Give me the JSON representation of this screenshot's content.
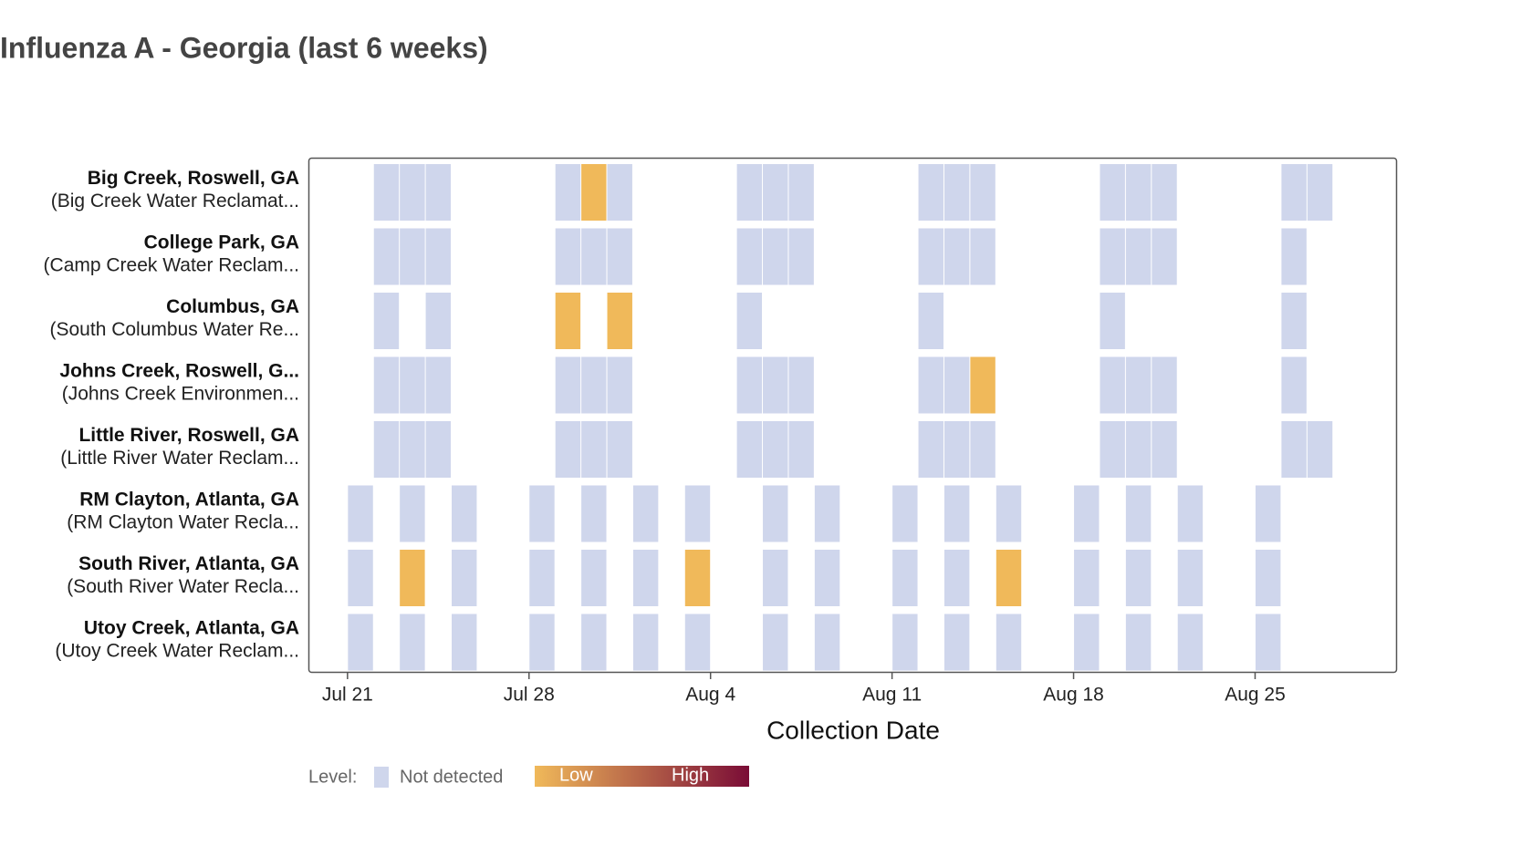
{
  "chart_data": {
    "type": "tile",
    "title": "Influenza A - Georgia (last 6 weeks)",
    "x_label": "Collection Date",
    "xlim": [
      "Jul 19",
      "Aug 31"
    ],
    "xticks": [
      "Jul 21",
      "Jul 28",
      "Aug 4",
      "Aug 11",
      "Aug 18",
      "Aug 25"
    ],
    "legend": {
      "title": "Level:",
      "not_detected": "Not detected",
      "low": "Low",
      "high": "High",
      "not_detected_color": "#cfd6ec",
      "low_color": "#f0b95a",
      "high_color": "#7a0c36"
    },
    "rows": [
      {
        "label": "Big Creek, Roswell, GA",
        "sublabel": "(Big Creek Water Reclamat...",
        "dates": [
          "Jul 22",
          "Jul 23",
          "Jul 24",
          "Jul 29",
          "Jul 30",
          "Jul 31",
          "Aug 5",
          "Aug 6",
          "Aug 7",
          "Aug 12",
          "Aug 13",
          "Aug 14",
          "Aug 19",
          "Aug 20",
          "Aug 21",
          "Aug 26",
          "Aug 27"
        ],
        "levels": [
          "Not detected",
          "Not detected",
          "Not detected",
          "Not detected",
          "Low",
          "Not detected",
          "Not detected",
          "Not detected",
          "Not detected",
          "Not detected",
          "Not detected",
          "Not detected",
          "Not detected",
          "Not detected",
          "Not detected",
          "Not detected",
          "Not detected"
        ]
      },
      {
        "label": "College Park, GA",
        "sublabel": "(Camp Creek Water Reclam...",
        "dates": [
          "Jul 22",
          "Jul 23",
          "Jul 24",
          "Jul 29",
          "Jul 30",
          "Jul 31",
          "Aug 5",
          "Aug 6",
          "Aug 7",
          "Aug 12",
          "Aug 13",
          "Aug 14",
          "Aug 19",
          "Aug 20",
          "Aug 21",
          "Aug 26"
        ],
        "levels": [
          "Not detected",
          "Not detected",
          "Not detected",
          "Not detected",
          "Not detected",
          "Not detected",
          "Not detected",
          "Not detected",
          "Not detected",
          "Not detected",
          "Not detected",
          "Not detected",
          "Not detected",
          "Not detected",
          "Not detected",
          "Not detected"
        ]
      },
      {
        "label": "Columbus, GA",
        "sublabel": "(South Columbus Water Re...",
        "dates": [
          "Jul 22",
          "Jul 24",
          "Jul 29",
          "Jul 31",
          "Aug 5",
          "Aug 12",
          "Aug 19",
          "Aug 26"
        ],
        "levels": [
          "Not detected",
          "Not detected",
          "Low",
          "Low",
          "Not detected",
          "Not detected",
          "Not detected",
          "Not detected"
        ]
      },
      {
        "label": "Johns Creek, Roswell, G...",
        "sublabel": "(Johns Creek Environmen...",
        "dates": [
          "Jul 22",
          "Jul 23",
          "Jul 24",
          "Jul 29",
          "Jul 30",
          "Jul 31",
          "Aug 5",
          "Aug 6",
          "Aug 7",
          "Aug 12",
          "Aug 13",
          "Aug 14",
          "Aug 19",
          "Aug 20",
          "Aug 21",
          "Aug 26"
        ],
        "levels": [
          "Not detected",
          "Not detected",
          "Not detected",
          "Not detected",
          "Not detected",
          "Not detected",
          "Not detected",
          "Not detected",
          "Not detected",
          "Not detected",
          "Not detected",
          "Low",
          "Not detected",
          "Not detected",
          "Not detected",
          "Not detected"
        ]
      },
      {
        "label": "Little River, Roswell, GA",
        "sublabel": "(Little River Water Reclam...",
        "dates": [
          "Jul 22",
          "Jul 23",
          "Jul 24",
          "Jul 29",
          "Jul 30",
          "Jul 31",
          "Aug 5",
          "Aug 6",
          "Aug 7",
          "Aug 12",
          "Aug 13",
          "Aug 14",
          "Aug 19",
          "Aug 20",
          "Aug 21",
          "Aug 26",
          "Aug 27"
        ],
        "levels": [
          "Not detected",
          "Not detected",
          "Not detected",
          "Not detected",
          "Not detected",
          "Not detected",
          "Not detected",
          "Not detected",
          "Not detected",
          "Not detected",
          "Not detected",
          "Not detected",
          "Not detected",
          "Not detected",
          "Not detected",
          "Not detected",
          "Not detected"
        ]
      },
      {
        "label": "RM Clayton, Atlanta, GA",
        "sublabel": "(RM Clayton Water Recla...",
        "dates": [
          "Jul 21",
          "Jul 23",
          "Jul 25",
          "Jul 28",
          "Jul 30",
          "Aug 1",
          "Aug 3",
          "Aug 6",
          "Aug 8",
          "Aug 11",
          "Aug 13",
          "Aug 15",
          "Aug 18",
          "Aug 20",
          "Aug 22",
          "Aug 25"
        ],
        "levels": [
          "Not detected",
          "Not detected",
          "Not detected",
          "Not detected",
          "Not detected",
          "Not detected",
          "Not detected",
          "Not detected",
          "Not detected",
          "Not detected",
          "Not detected",
          "Not detected",
          "Not detected",
          "Not detected",
          "Not detected",
          "Not detected"
        ]
      },
      {
        "label": "South River, Atlanta, GA",
        "sublabel": "(South River Water Recla...",
        "dates": [
          "Jul 21",
          "Jul 23",
          "Jul 25",
          "Jul 28",
          "Jul 30",
          "Aug 1",
          "Aug 3",
          "Aug 6",
          "Aug 8",
          "Aug 11",
          "Aug 13",
          "Aug 15",
          "Aug 18",
          "Aug 20",
          "Aug 22",
          "Aug 25"
        ],
        "levels": [
          "Not detected",
          "Low",
          "Not detected",
          "Not detected",
          "Not detected",
          "Not detected",
          "Low",
          "Not detected",
          "Not detected",
          "Not detected",
          "Not detected",
          "Low",
          "Not detected",
          "Not detected",
          "Not detected",
          "Not detected"
        ]
      },
      {
        "label": "Utoy Creek, Atlanta, GA",
        "sublabel": "(Utoy Creek Water Reclam...",
        "dates": [
          "Jul 21",
          "Jul 23",
          "Jul 25",
          "Jul 28",
          "Jul 30",
          "Aug 1",
          "Aug 3",
          "Aug 6",
          "Aug 8",
          "Aug 11",
          "Aug 13",
          "Aug 15",
          "Aug 18",
          "Aug 20",
          "Aug 22",
          "Aug 25"
        ],
        "levels": [
          "Not detected",
          "Not detected",
          "Not detected",
          "Not detected",
          "Not detected",
          "Not detected",
          "Not detected",
          "Not detected",
          "Not detected",
          "Not detected",
          "Not detected",
          "Not detected",
          "Not detected",
          "Not detected",
          "Not detected",
          "Not detected"
        ]
      }
    ]
  }
}
